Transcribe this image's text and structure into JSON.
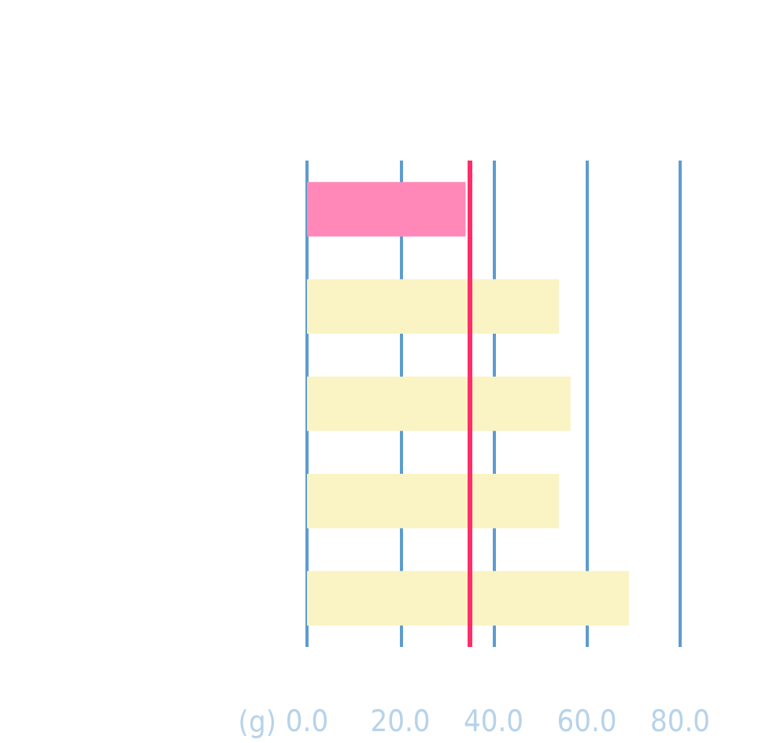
{
  "chart_data": {
    "type": "bar",
    "orientation": "horizontal",
    "xlabel": "(g)",
    "categories": [
      null,
      null,
      null,
      null,
      null
    ],
    "values": [
      34,
      54,
      56.5,
      54,
      69
    ],
    "colors": [
      "#ff88b8",
      "#faf3c4",
      "#faf3c4",
      "#faf3c4",
      "#faf3c4"
    ],
    "xlim": [
      0,
      80
    ],
    "xticks": [
      {
        "value": 0,
        "label": "0.0"
      },
      {
        "value": 20,
        "label": "20.0"
      },
      {
        "value": 40,
        "label": "40.0"
      },
      {
        "value": 60,
        "label": "60.0"
      },
      {
        "value": 80,
        "label": "80.0"
      }
    ],
    "ref_lines": [
      {
        "axis": "x",
        "value": 35,
        "color": "#ff2e6a"
      }
    ],
    "grid": "x"
  }
}
